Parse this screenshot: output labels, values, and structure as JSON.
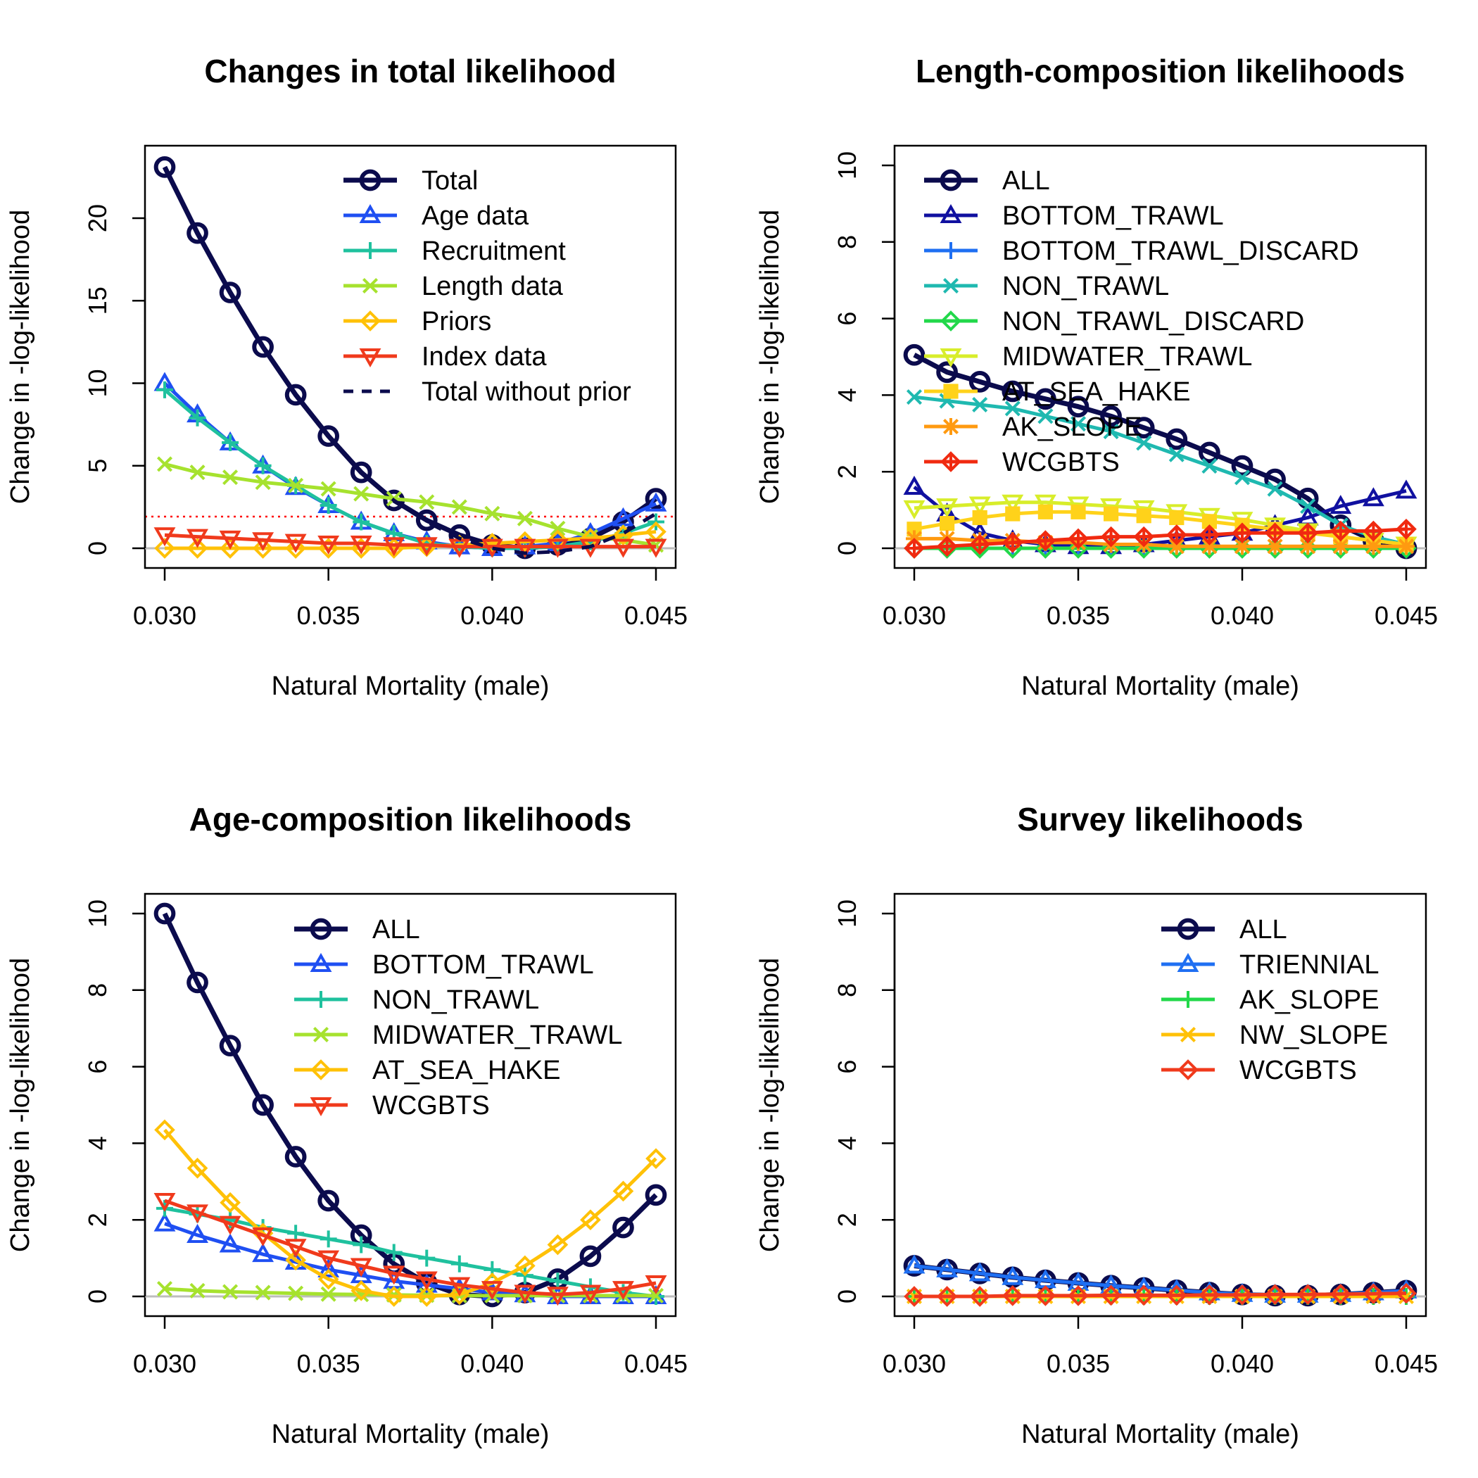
{
  "figure": {
    "background": "#ffffff"
  },
  "chart_data": [
    {
      "type": "line",
      "title": "Changes in total likelihood",
      "xlabel": "Natural Mortality (male)",
      "ylabel": "Change in -log-likelihood",
      "xlim": [
        0.03,
        0.045
      ],
      "ylim": [
        0,
        23.2
      ],
      "xticks": [
        "0.030",
        "0.035",
        "0.040",
        "0.045"
      ],
      "yticks": [
        "0",
        "5",
        "10",
        "15",
        "20"
      ],
      "legend_position": "top-right",
      "reference_line": {
        "y": 1.92,
        "color": "#ff0000",
        "style": "dotted"
      },
      "x": [
        0.03,
        0.031,
        0.032,
        0.033,
        0.034,
        0.035,
        0.036,
        0.037,
        0.038,
        0.039,
        0.04,
        0.041,
        0.042,
        0.043,
        0.044,
        0.045
      ],
      "series": [
        {
          "name": "Total",
          "color": "#0b0b4d",
          "marker": "circle",
          "values": [
            23.1,
            19.1,
            15.5,
            12.2,
            9.3,
            6.8,
            4.6,
            2.9,
            1.7,
            0.8,
            0.2,
            0.0,
            0.2,
            0.6,
            1.6,
            3.0
          ]
        },
        {
          "name": "Age data",
          "color": "#1f4ff2",
          "marker": "triangle-up",
          "values": [
            10.0,
            8.1,
            6.4,
            5.0,
            3.7,
            2.6,
            1.6,
            0.9,
            0.4,
            0.1,
            0.0,
            0.1,
            0.3,
            0.9,
            1.8,
            2.7
          ]
        },
        {
          "name": "Recruitment",
          "color": "#1fc19e",
          "marker": "plus",
          "values": [
            9.6,
            7.9,
            6.4,
            5.0,
            3.8,
            2.6,
            1.6,
            0.9,
            0.3,
            0.1,
            0.0,
            0.0,
            0.1,
            0.4,
            0.9,
            1.6
          ]
        },
        {
          "name": "Length data",
          "color": "#a6e22e",
          "marker": "cross",
          "values": [
            5.1,
            4.6,
            4.3,
            4.0,
            3.8,
            3.6,
            3.3,
            3.0,
            2.8,
            2.5,
            2.1,
            1.8,
            1.2,
            0.7,
            0.5,
            0.2
          ]
        },
        {
          "name": "Priors",
          "color": "#ffc107",
          "marker": "diamond",
          "values": [
            0.0,
            0.0,
            0.0,
            0.0,
            0.0,
            0.0,
            0.0,
            0.0,
            0.1,
            0.2,
            0.3,
            0.4,
            0.5,
            0.6,
            0.8,
            1.0
          ]
        },
        {
          "name": "Index data",
          "color": "#f03a1c",
          "marker": "triangle-down",
          "values": [
            0.8,
            0.7,
            0.6,
            0.5,
            0.4,
            0.3,
            0.3,
            0.2,
            0.2,
            0.1,
            0.1,
            0.1,
            0.1,
            0.1,
            0.1,
            0.1
          ]
        },
        {
          "name": "Total without prior",
          "color": "#0b0b4d",
          "marker": "none",
          "dashed": true,
          "values": [
            23.1,
            19.1,
            15.5,
            12.2,
            9.3,
            6.8,
            4.6,
            2.9,
            1.6,
            0.6,
            0.0,
            -0.3,
            -0.2,
            0.1,
            0.9,
            2.1
          ]
        }
      ]
    },
    {
      "type": "line",
      "title": "Length-composition likelihoods",
      "xlabel": "Natural Mortality (male)",
      "ylabel": "Change in -log-likelihood",
      "xlim": [
        0.03,
        0.045
      ],
      "ylim": [
        0,
        10
      ],
      "xticks": [
        "0.030",
        "0.035",
        "0.040",
        "0.045"
      ],
      "yticks": [
        "0",
        "2",
        "4",
        "6",
        "8",
        "10"
      ],
      "legend_position": "top-left",
      "x": [
        0.03,
        0.031,
        0.032,
        0.033,
        0.034,
        0.035,
        0.036,
        0.037,
        0.038,
        0.039,
        0.04,
        0.041,
        0.042,
        0.043,
        0.044,
        0.045
      ],
      "series": [
        {
          "name": "ALL",
          "color": "#0b0b4d",
          "marker": "circle",
          "values": [
            5.05,
            4.6,
            4.35,
            4.1,
            3.9,
            3.7,
            3.45,
            3.15,
            2.85,
            2.5,
            2.15,
            1.8,
            1.3,
            0.6,
            0.2,
            0.0
          ]
        },
        {
          "name": "BOTTOM_TRAWL",
          "color": "#1010a0",
          "marker": "triangle-up",
          "values": [
            1.6,
            0.9,
            0.4,
            0.2,
            0.1,
            0.05,
            0.05,
            0.1,
            0.2,
            0.3,
            0.4,
            0.6,
            0.8,
            1.1,
            1.3,
            1.5
          ]
        },
        {
          "name": "BOTTOM_TRAWL_DISCARD",
          "color": "#1f6ff2",
          "marker": "plus",
          "values": [
            0.0,
            0.0,
            0.0,
            0.0,
            0.0,
            0.0,
            0.0,
            0.0,
            0.0,
            0.0,
            0.0,
            0.0,
            0.0,
            0.0,
            0.0,
            0.0
          ]
        },
        {
          "name": "NON_TRAWL",
          "color": "#1fb9b0",
          "marker": "cross",
          "values": [
            3.95,
            3.85,
            3.75,
            3.65,
            3.45,
            3.25,
            3.05,
            2.75,
            2.45,
            2.15,
            1.85,
            1.55,
            1.1,
            0.6,
            0.3,
            0.1
          ]
        },
        {
          "name": "NON_TRAWL_DISCARD",
          "color": "#22d84a",
          "marker": "diamond",
          "values": [
            0.0,
            0.0,
            0.0,
            0.0,
            0.0,
            0.0,
            0.0,
            0.0,
            0.0,
            0.0,
            0.0,
            0.0,
            0.0,
            0.0,
            0.0,
            0.0
          ]
        },
        {
          "name": "MIDWATER_TRAWL",
          "color": "#d8ed2a",
          "marker": "triangle-down",
          "values": [
            1.05,
            1.1,
            1.15,
            1.2,
            1.2,
            1.15,
            1.1,
            1.05,
            0.95,
            0.85,
            0.75,
            0.6,
            0.45,
            0.3,
            0.2,
            0.1
          ]
        },
        {
          "name": "AT_SEA_HAKE",
          "color": "#ffd21a",
          "marker": "square",
          "values": [
            0.5,
            0.65,
            0.8,
            0.9,
            0.95,
            0.95,
            0.9,
            0.85,
            0.8,
            0.7,
            0.6,
            0.5,
            0.4,
            0.3,
            0.2,
            0.1
          ]
        },
        {
          "name": "AK_SLOPE",
          "color": "#ff9a10",
          "marker": "asterisk",
          "values": [
            0.25,
            0.25,
            0.2,
            0.2,
            0.15,
            0.15,
            0.1,
            0.1,
            0.05,
            0.05,
            0.05,
            0.05,
            0.05,
            0.05,
            0.05,
            0.05
          ]
        },
        {
          "name": "WCGBTS",
          "color": "#f02a10",
          "marker": "diamond-plus",
          "values": [
            0.0,
            0.05,
            0.1,
            0.15,
            0.2,
            0.25,
            0.3,
            0.3,
            0.35,
            0.35,
            0.4,
            0.4,
            0.4,
            0.45,
            0.45,
            0.5
          ]
        }
      ]
    },
    {
      "type": "line",
      "title": "Age-composition likelihoods",
      "xlabel": "Natural Mortality (male)",
      "ylabel": "Change in -log-likelihood",
      "xlim": [
        0.03,
        0.045
      ],
      "ylim": [
        0,
        10
      ],
      "xticks": [
        "0.030",
        "0.035",
        "0.040",
        "0.045"
      ],
      "yticks": [
        "0",
        "2",
        "4",
        "6",
        "8",
        "10"
      ],
      "legend_position": "top-right",
      "x": [
        0.03,
        0.031,
        0.032,
        0.033,
        0.034,
        0.035,
        0.036,
        0.037,
        0.038,
        0.039,
        0.04,
        0.041,
        0.042,
        0.043,
        0.044,
        0.045
      ],
      "series": [
        {
          "name": "ALL",
          "color": "#0b0b4d",
          "marker": "circle",
          "values": [
            10.0,
            8.2,
            6.55,
            5.0,
            3.65,
            2.5,
            1.6,
            0.85,
            0.35,
            0.05,
            0.0,
            0.1,
            0.45,
            1.05,
            1.8,
            2.65
          ]
        },
        {
          "name": "BOTTOM_TRAWL",
          "color": "#1f4ff2",
          "marker": "triangle-up",
          "values": [
            1.9,
            1.6,
            1.35,
            1.1,
            0.9,
            0.7,
            0.55,
            0.4,
            0.3,
            0.2,
            0.1,
            0.05,
            0.0,
            0.0,
            0.0,
            0.0
          ]
        },
        {
          "name": "NON_TRAWL",
          "color": "#1fc19e",
          "marker": "plus",
          "values": [
            2.3,
            2.15,
            2.0,
            1.8,
            1.65,
            1.5,
            1.35,
            1.15,
            1.0,
            0.85,
            0.7,
            0.55,
            0.4,
            0.25,
            0.1,
            0.0
          ]
        },
        {
          "name": "MIDWATER_TRAWL",
          "color": "#a6e22e",
          "marker": "cross",
          "values": [
            0.2,
            0.15,
            0.12,
            0.1,
            0.08,
            0.06,
            0.05,
            0.04,
            0.03,
            0.02,
            0.02,
            0.02,
            0.02,
            0.02,
            0.02,
            0.02
          ]
        },
        {
          "name": "AT_SEA_HAKE",
          "color": "#ffc107",
          "marker": "diamond",
          "values": [
            4.35,
            3.35,
            2.45,
            1.65,
            0.95,
            0.45,
            0.15,
            0.0,
            0.0,
            0.05,
            0.35,
            0.8,
            1.35,
            2.0,
            2.75,
            3.6
          ]
        },
        {
          "name": "WCGBTS",
          "color": "#f03a1c",
          "marker": "triangle-down",
          "values": [
            2.5,
            2.2,
            1.9,
            1.6,
            1.3,
            1.0,
            0.8,
            0.6,
            0.45,
            0.3,
            0.2,
            0.1,
            0.05,
            0.1,
            0.2,
            0.35
          ]
        }
      ]
    },
    {
      "type": "line",
      "title": "Survey likelihoods",
      "xlabel": "Natural Mortality (male)",
      "ylabel": "Change in -log-likelihood",
      "xlim": [
        0.03,
        0.045
      ],
      "ylim": [
        0,
        10
      ],
      "xticks": [
        "0.030",
        "0.035",
        "0.040",
        "0.045"
      ],
      "yticks": [
        "0",
        "2",
        "4",
        "6",
        "8",
        "10"
      ],
      "legend_position": "top-right",
      "x": [
        0.03,
        0.031,
        0.032,
        0.033,
        0.034,
        0.035,
        0.036,
        0.037,
        0.038,
        0.039,
        0.04,
        0.041,
        0.042,
        0.043,
        0.044,
        0.045
      ],
      "series": [
        {
          "name": "ALL",
          "color": "#0b0b4d",
          "marker": "circle",
          "values": [
            0.8,
            0.7,
            0.6,
            0.5,
            0.42,
            0.35,
            0.28,
            0.22,
            0.16,
            0.1,
            0.05,
            0.02,
            0.02,
            0.05,
            0.1,
            0.15
          ]
        },
        {
          "name": "TRIENNIAL",
          "color": "#1f6ff2",
          "marker": "triangle-up",
          "values": [
            0.8,
            0.7,
            0.6,
            0.5,
            0.42,
            0.35,
            0.28,
            0.22,
            0.16,
            0.1,
            0.06,
            0.04,
            0.04,
            0.06,
            0.1,
            0.15
          ]
        },
        {
          "name": "AK_SLOPE",
          "color": "#22d84a",
          "marker": "plus",
          "values": [
            0.0,
            0.0,
            0.0,
            0.0,
            0.0,
            0.0,
            0.0,
            0.0,
            0.0,
            0.0,
            0.0,
            0.0,
            0.0,
            0.0,
            0.0,
            0.0
          ]
        },
        {
          "name": "NW_SLOPE",
          "color": "#ffc107",
          "marker": "cross",
          "values": [
            0.0,
            0.0,
            0.0,
            0.0,
            0.0,
            0.0,
            0.0,
            0.0,
            0.0,
            0.0,
            0.0,
            0.0,
            0.0,
            0.0,
            0.0,
            0.0
          ]
        },
        {
          "name": "WCGBTS",
          "color": "#f03a1c",
          "marker": "diamond",
          "values": [
            0.0,
            0.0,
            0.0,
            0.02,
            0.02,
            0.02,
            0.03,
            0.03,
            0.03,
            0.04,
            0.04,
            0.05,
            0.05,
            0.06,
            0.07,
            0.08
          ]
        }
      ]
    }
  ]
}
